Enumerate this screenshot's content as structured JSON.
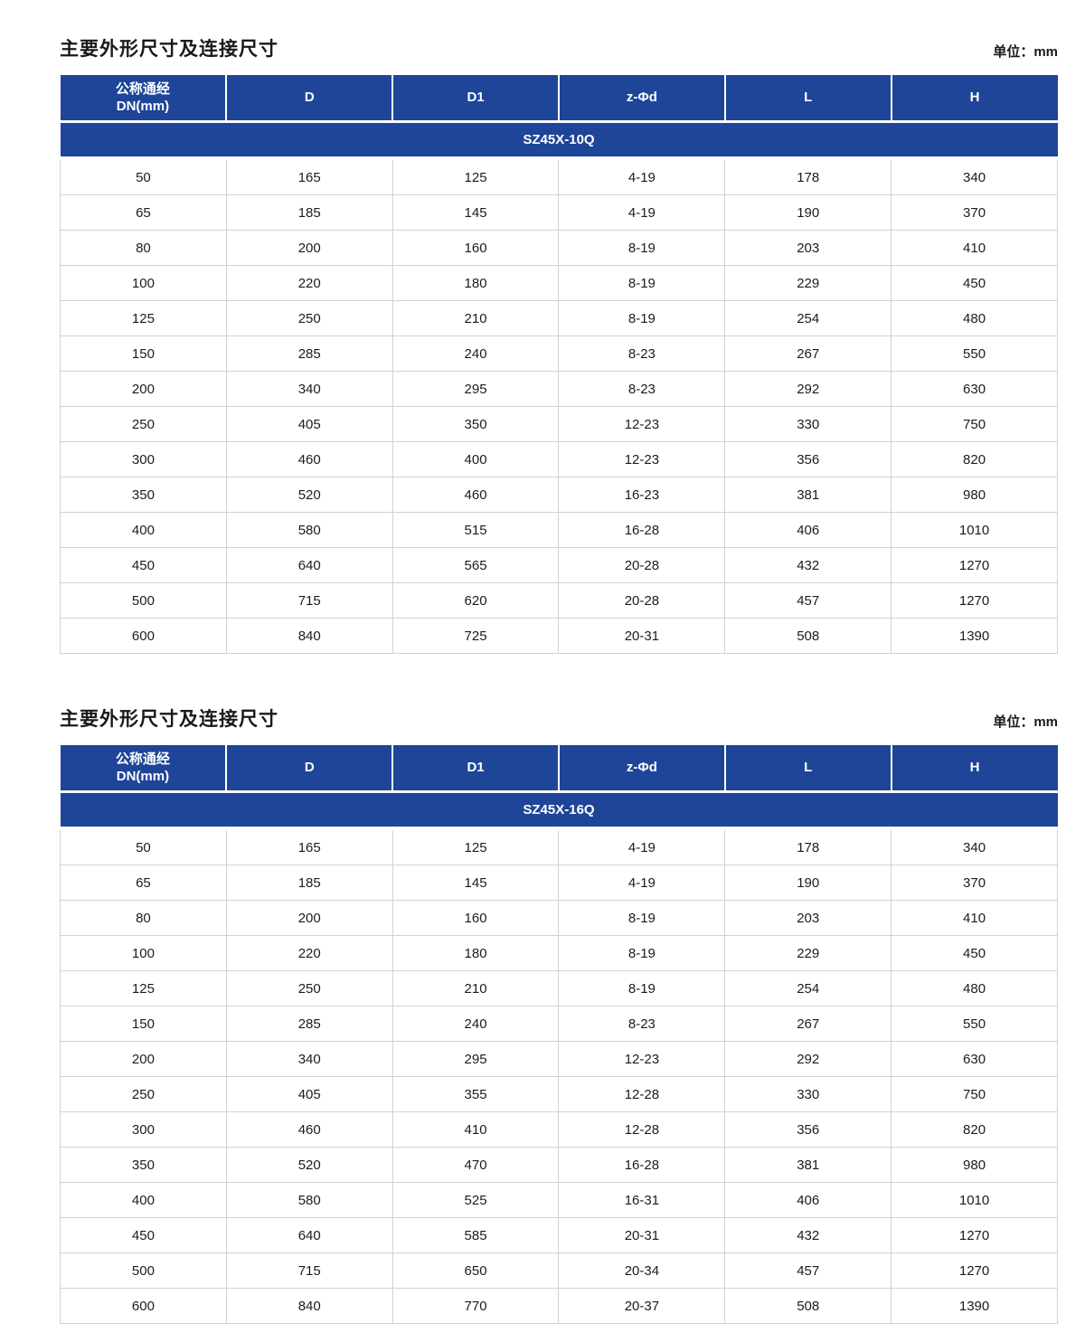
{
  "colors": {
    "header_blue": "#1e4598",
    "row_border": "#d2d2d2",
    "header_text": "#ffffff",
    "body_text": "#1c1c1c"
  },
  "sections": [
    {
      "title": "主要外形尺寸及连接尺寸",
      "unit_label": "单位：mm",
      "columns": [
        "公称通经\nDN(mm)",
        "D",
        "D1",
        "z-Φd",
        "L",
        "H"
      ],
      "model": "SZ45X-10Q",
      "rows": [
        [
          "50",
          "165",
          "125",
          "4-19",
          "178",
          "340"
        ],
        [
          "65",
          "185",
          "145",
          "4-19",
          "190",
          "370"
        ],
        [
          "80",
          "200",
          "160",
          "8-19",
          "203",
          "410"
        ],
        [
          "100",
          "220",
          "180",
          "8-19",
          "229",
          "450"
        ],
        [
          "125",
          "250",
          "210",
          "8-19",
          "254",
          "480"
        ],
        [
          "150",
          "285",
          "240",
          "8-23",
          "267",
          "550"
        ],
        [
          "200",
          "340",
          "295",
          "8-23",
          "292",
          "630"
        ],
        [
          "250",
          "405",
          "350",
          "12-23",
          "330",
          "750"
        ],
        [
          "300",
          "460",
          "400",
          "12-23",
          "356",
          "820"
        ],
        [
          "350",
          "520",
          "460",
          "16-23",
          "381",
          "980"
        ],
        [
          "400",
          "580",
          "515",
          "16-28",
          "406",
          "1010"
        ],
        [
          "450",
          "640",
          "565",
          "20-28",
          "432",
          "1270"
        ],
        [
          "500",
          "715",
          "620",
          "20-28",
          "457",
          "1270"
        ],
        [
          "600",
          "840",
          "725",
          "20-31",
          "508",
          "1390"
        ]
      ]
    },
    {
      "title": "主要外形尺寸及连接尺寸",
      "unit_label": "单位：mm",
      "columns": [
        "公称通经\nDN(mm)",
        "D",
        "D1",
        "z-Φd",
        "L",
        "H"
      ],
      "model": "SZ45X-16Q",
      "rows": [
        [
          "50",
          "165",
          "125",
          "4-19",
          "178",
          "340"
        ],
        [
          "65",
          "185",
          "145",
          "4-19",
          "190",
          "370"
        ],
        [
          "80",
          "200",
          "160",
          "8-19",
          "203",
          "410"
        ],
        [
          "100",
          "220",
          "180",
          "8-19",
          "229",
          "450"
        ],
        [
          "125",
          "250",
          "210",
          "8-19",
          "254",
          "480"
        ],
        [
          "150",
          "285",
          "240",
          "8-23",
          "267",
          "550"
        ],
        [
          "200",
          "340",
          "295",
          "12-23",
          "292",
          "630"
        ],
        [
          "250",
          "405",
          "355",
          "12-28",
          "330",
          "750"
        ],
        [
          "300",
          "460",
          "410",
          "12-28",
          "356",
          "820"
        ],
        [
          "350",
          "520",
          "470",
          "16-28",
          "381",
          "980"
        ],
        [
          "400",
          "580",
          "525",
          "16-31",
          "406",
          "1010"
        ],
        [
          "450",
          "640",
          "585",
          "20-31",
          "432",
          "1270"
        ],
        [
          "500",
          "715",
          "650",
          "20-34",
          "457",
          "1270"
        ],
        [
          "600",
          "840",
          "770",
          "20-37",
          "508",
          "1390"
        ]
      ]
    }
  ]
}
